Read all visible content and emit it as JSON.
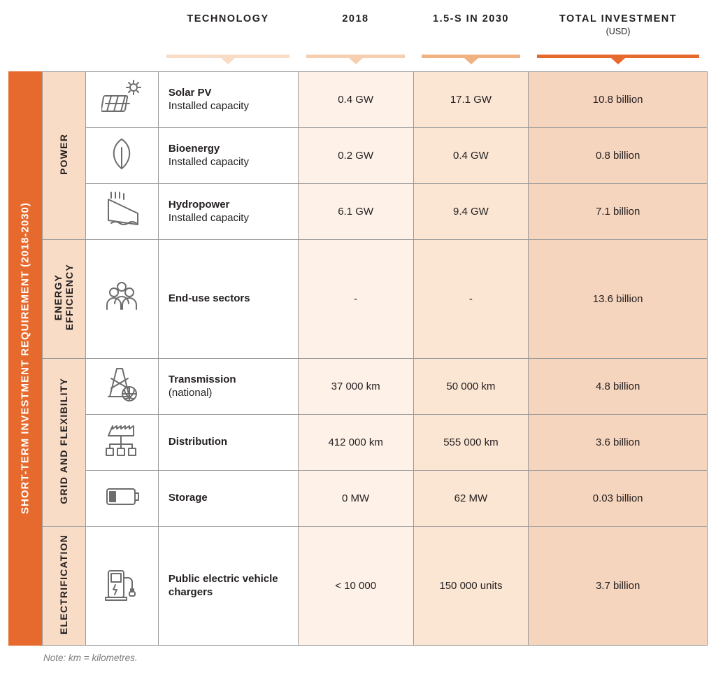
{
  "colors": {
    "rail": "#e66a2d",
    "cat_bg": "#f9dcc6",
    "col2018_bg": "#fdf1e8",
    "col2030_bg": "#fbe5d3",
    "colInvest_bg": "#f6d5be",
    "border": "#9b9b9b",
    "icon": "#6d6d6d",
    "hbar1": "#f9dcc6",
    "hbar2": "#f6cfb0",
    "hbar3": "#f1b282",
    "hbar4": "#e66a2d"
  },
  "rail_label": "SHORT-TERM INVESTMENT REQUIREMENT (2018-2030)",
  "headers": {
    "technology": "TECHNOLOGY",
    "year2018": "2018",
    "year2030": "1.5-S IN 2030",
    "investment": "TOTAL INVESTMENT",
    "investment_sub": "(USD)"
  },
  "categories": [
    {
      "id": "power",
      "label": "POWER",
      "rows": [
        "solar_pv",
        "bioenergy",
        "hydropower"
      ]
    },
    {
      "id": "ee",
      "label": "ENERGY\nEFFICIENCY",
      "rows": [
        "enduse"
      ]
    },
    {
      "id": "grid",
      "label": "GRID AND FLEXIBILITY",
      "rows": [
        "transmission",
        "distribution",
        "storage"
      ]
    },
    {
      "id": "elec",
      "label": "ELECTRIFICATION",
      "rows": [
        "ev"
      ]
    }
  ],
  "rows": {
    "solar_pv": {
      "title": "Solar PV",
      "subtitle": "Installed capacity",
      "v2018": "0.4 GW",
      "v2030": "17.1 GW",
      "invest": "10.8 billion",
      "icon": "solar-pv-icon"
    },
    "bioenergy": {
      "title": "Bioenergy",
      "subtitle": "Installed capacity",
      "v2018": "0.2 GW",
      "v2030": "0.4 GW",
      "invest": "0.8 billion",
      "icon": "bioenergy-icon"
    },
    "hydropower": {
      "title": "Hydropower",
      "subtitle": "Installed capacity",
      "v2018": "6.1 GW",
      "v2030": "9.4 GW",
      "invest": "7.1 billion",
      "icon": "hydropower-icon"
    },
    "enduse": {
      "title": "End-use sectors",
      "subtitle": "",
      "v2018": "-",
      "v2030": "-",
      "invest": "13.6 billion",
      "icon": "enduse-icon"
    },
    "transmission": {
      "title": "Transmission",
      "subtitle": "(national)",
      "v2018": "37 000 km",
      "v2030": "50 000 km",
      "invest": "4.8 billion",
      "icon": "transmission-icon"
    },
    "distribution": {
      "title": "Distribution",
      "subtitle": "",
      "v2018": "412 000 km",
      "v2030": "555 000 km",
      "invest": "3.6 billion",
      "icon": "distribution-icon"
    },
    "storage": {
      "title": "Storage",
      "subtitle": "",
      "v2018": "0 MW",
      "v2030": "62 MW",
      "invest": "0.03 billion",
      "icon": "storage-icon"
    },
    "ev": {
      "title": "Public electric vehicle chargers",
      "subtitle": "",
      "v2018": "< 10 000",
      "v2030": "150 000 units",
      "invest": "3.7 billion",
      "icon": "ev-charger-icon"
    }
  },
  "note": {
    "label": "Note:",
    "text": " km = kilometres."
  }
}
